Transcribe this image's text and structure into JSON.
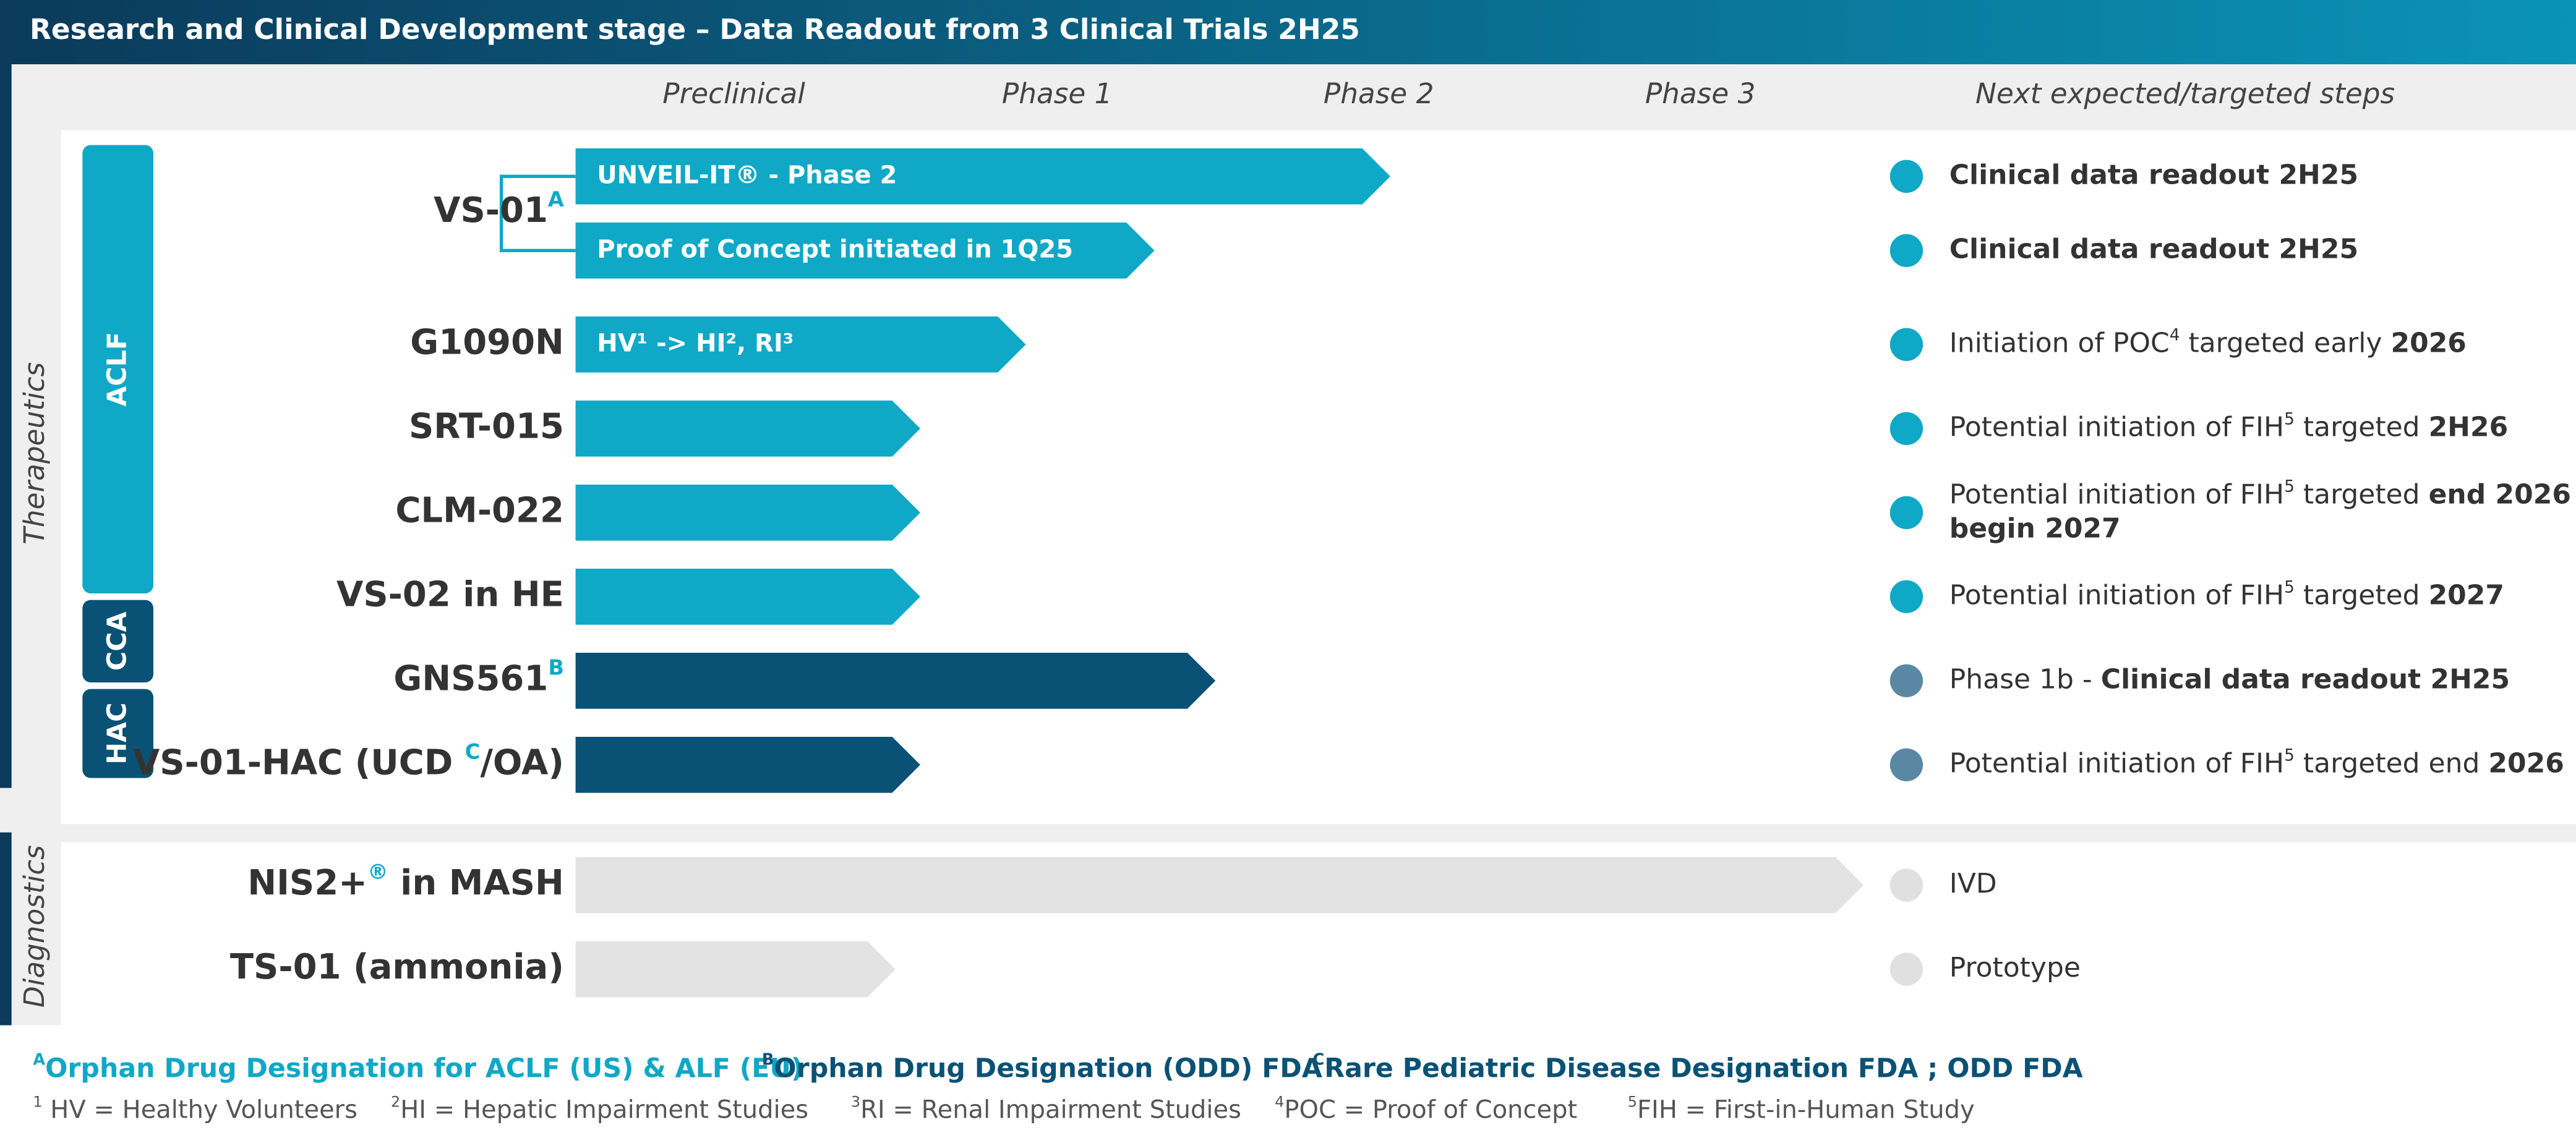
{
  "header": {
    "title": "Research and Clinical Development stage – Data Readout from 3 Clinical Trials 2H25"
  },
  "columns": [
    "Preclinical",
    "Phase 1",
    "Phase 2",
    "Phase 3",
    "Next expected/targeted steps"
  ],
  "sections": [
    "Therapeutics",
    "Diagnostics"
  ],
  "groups": [
    "ACLF",
    "CCA",
    "HAC"
  ],
  "rows": [
    {
      "label": [
        {
          "t": "VS-01"
        },
        {
          "t": "A",
          "s": "sup"
        }
      ],
      "bar": "UNVEIL-IT® - Phase 2",
      "step": [
        {
          "t": "Clinical data readout 2H25",
          "s": "b"
        }
      ]
    },
    {
      "bar": "Proof of Concept initiated in 1Q25",
      "step": [
        {
          "t": "Clinical data readout 2H25",
          "s": "b"
        }
      ]
    },
    {
      "label": [
        {
          "t": "G1090N"
        }
      ],
      "bar": "HV¹ -> HI², RI³",
      "step": [
        {
          "t": "Initiation of POC"
        },
        {
          "t": "4",
          "s": "sup"
        },
        {
          "t": " targeted early "
        },
        {
          "t": "2026",
          "s": "b"
        }
      ]
    },
    {
      "label": [
        {
          "t": "SRT-015"
        }
      ],
      "step": [
        {
          "t": "Potential initiation of FIH"
        },
        {
          "t": "5",
          "s": "sup"
        },
        {
          "t": " targeted "
        },
        {
          "t": "2H26",
          "s": "b"
        }
      ]
    },
    {
      "label": [
        {
          "t": "CLM-022"
        }
      ],
      "step": [
        {
          "t": "Potential initiation of FIH"
        },
        {
          "t": "5",
          "s": "sup"
        },
        {
          "t": " targeted "
        },
        {
          "t": "end 2026 –",
          "s": "b"
        },
        {
          "t": "begin 2027",
          "s": "b",
          "nl": true
        }
      ]
    },
    {
      "label": [
        {
          "t": "VS-02 in HE"
        }
      ],
      "step": [
        {
          "t": "Potential initiation of FIH"
        },
        {
          "t": "5",
          "s": "sup"
        },
        {
          "t": " targeted "
        },
        {
          "t": "2027",
          "s": "b"
        }
      ]
    },
    {
      "label": [
        {
          "t": "GNS561"
        },
        {
          "t": "B",
          "s": "sup"
        }
      ],
      "step": [
        {
          "t": "Phase 1b - "
        },
        {
          "t": "Clinical data readout 2H25",
          "s": "b"
        }
      ]
    },
    {
      "label": [
        {
          "t": "VS-01-HAC (UCD "
        },
        {
          "t": "C",
          "s": "sup"
        },
        {
          "t": "/OA)"
        }
      ],
      "step": [
        {
          "t": "Potential initiation of FIH"
        },
        {
          "t": "5",
          "s": "sup"
        },
        {
          "t": " targeted end "
        },
        {
          "t": "2026",
          "s": "b"
        }
      ]
    },
    {
      "label": [
        {
          "t": "NIS2+"
        },
        {
          "t": "®",
          "s": "sup"
        },
        {
          "t": " in MASH"
        }
      ],
      "step": [
        {
          "t": "IVD"
        }
      ]
    },
    {
      "label": [
        {
          "t": "TS-01 (ammonia)"
        }
      ],
      "step": [
        {
          "t": "Prototype"
        }
      ]
    }
  ],
  "legend": [
    [
      {
        "t": "A",
        "s": "sup"
      },
      {
        "t": "Orphan Drug Designation for ACLF (US) & ALF (EU)"
      }
    ],
    [
      {
        "t": "B",
        "s": "sup"
      },
      {
        "t": "Orphan Drug Designation (ODD) FDA"
      }
    ],
    [
      {
        "t": "C",
        "s": "sup"
      },
      {
        "t": "Rare Pediatric Disease Designation FDA ; ODD FDA"
      }
    ]
  ],
  "footnotes": [
    [
      {
        "t": "1",
        "s": "sup"
      },
      {
        "t": " HV = Healthy Volunteers"
      }
    ],
    [
      {
        "t": "2",
        "s": "sup"
      },
      {
        "t": "HI = Hepatic Impairment Studies"
      }
    ],
    [
      {
        "t": "3",
        "s": "sup"
      },
      {
        "t": "RI = Renal Impairment Studies"
      }
    ],
    [
      {
        "t": "4",
        "s": "sup"
      },
      {
        "t": "POC = Proof of Concept"
      }
    ],
    [
      {
        "t": "5",
        "s": "sup"
      },
      {
        "t": "FIH = First-in-Human Study"
      }
    ]
  ]
}
